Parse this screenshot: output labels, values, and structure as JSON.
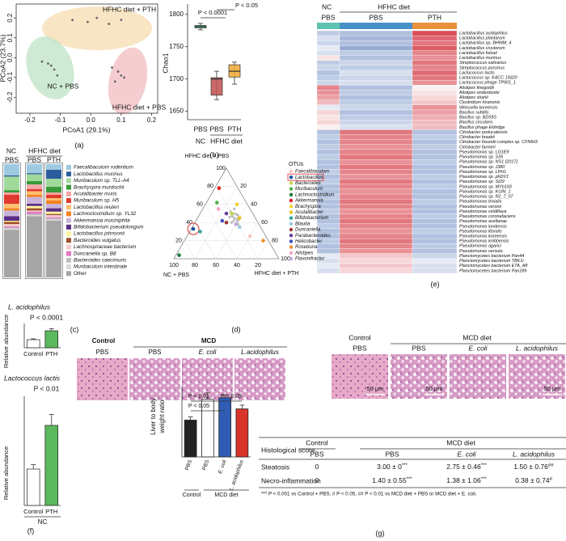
{
  "panel_labels": [
    "(a)",
    "(b)",
    "(c)",
    "(d)",
    "(e)",
    "(f)",
    "(g)"
  ],
  "pcoa": {
    "type": "scatter",
    "xlabel": "PCoA1 (29.1%)",
    "ylabel": "PCoA2 (23.7%)",
    "xlim": [
      -0.245,
      0.22
    ],
    "ylim": [
      -0.28,
      0.27
    ],
    "xticks": [
      -0.2,
      -0.1,
      {
        "value": 0,
        "label": "0.0"
      },
      0.1,
      0.2
    ],
    "yticks": [
      -0.2,
      -0.1,
      {
        "value": 0,
        "label": "0.0"
      },
      0.1,
      0.2
    ],
    "series": [
      {
        "name": "HFHC diet + PTH",
        "color": "#f5dcb0",
        "x": [
          -0.06,
          -0.01,
          0.02,
          0.06,
          0.1
        ],
        "values": [
          0.19,
          0.18,
          0.2,
          0.17,
          0.19
        ]
      },
      {
        "name": "NC + PBS",
        "color": "#bfe3c6",
        "x": [
          -0.16,
          -0.13,
          -0.12,
          -0.11,
          -0.14
        ],
        "values": [
          -0.02,
          -0.04,
          -0.06,
          -0.09,
          -0.03
        ]
      },
      {
        "name": "HFHC diet + PBS",
        "color": "#f2bcc0",
        "x": [
          0.07,
          0.09,
          0.1,
          0.11,
          0.08
        ],
        "values": [
          -0.05,
          -0.07,
          -0.09,
          -0.1,
          -0.12
        ]
      }
    ]
  },
  "chao1": {
    "type": "box",
    "ylabel": "Chao1",
    "ylim": [
      1637,
      1816
    ],
    "yticks": [
      1650,
      1700,
      1750,
      1800
    ],
    "categories": [
      "PBS",
      "PBS",
      "PTH"
    ],
    "groups": [
      "NC",
      "HFHC diet"
    ],
    "colors": [
      "#3cb371",
      "#c0504d",
      "#f0a830"
    ],
    "min": [
      1776,
      1668,
      1692
    ],
    "q1": [
      1779,
      1675,
      1703
    ],
    "median": [
      1781,
      1700,
      1712
    ],
    "q3": [
      1783,
      1702,
      1722
    ],
    "max": [
      1786,
      1712,
      1726
    ],
    "annotations": [
      "P < 0.0001",
      "P < 0.05"
    ]
  },
  "heatmap": {
    "column_groups": [
      "NC",
      "HFHC diet"
    ],
    "columns": [
      "PBS",
      "PBS",
      "PTH"
    ],
    "column_colors": [
      "#5fc3b2",
      "#4a90c8",
      "#e8913a"
    ],
    "rows": [
      "Lactobacillus acidophilus",
      "Lactobacillus plantarum",
      "Lactobacillus sp. BHWM_4",
      "Lactobacillus crustorum",
      "Lactobacillus futsaii",
      "Lactobacillus murinus",
      "Streptococcus salivarius",
      "Streptococcus porcinus",
      "Lactococcus lactis",
      "Lactococcus sp. KACC 19320",
      "Lactococcus phage TP901_1",
      "Alistipes finegoldii",
      "Alistipes onderdonkii",
      "Alistipes shahii",
      "Clostridium hiranonis",
      "Weissella koreensis",
      "Bacillus subtilis",
      "Bacillus sp. BD59S",
      "Bacillus circulans",
      "Bacillus phage Eldridge",
      "Citrobacter portucalensis",
      "Citrobacter braakii",
      "Citrobacter freundii complex sp. CFNIH3",
      "Citrobacter farmeri",
      "Pseudomonas sp. LG1E9",
      "Pseudomonas sp. S35",
      "Pseudomonas sp. NS1 (2017)",
      "Pseudomonas sp. J380",
      "Pseudomonas sp. LPH1",
      "Pseudomonas sp. phDV1",
      "Pseudomonas sp. St29",
      "Pseudomonas sp. MYb193",
      "Pseudomonas sp. KUIN_1",
      "Pseudomonas sp. R2_7_07",
      "Pseudomonas trivialis",
      "Pseudomonas veronii",
      "Pseudomonas viridiflava",
      "Pseudomonas coronafaciens",
      "Pseudomonas avellanae",
      "Pseudomonas lundensis",
      "Pseudomonas litoralis",
      "Pseudomonas koreensis",
      "Pseudomonas knibbensis",
      "Pseudomonas agarici",
      "Pseudomonas versuta",
      "Planctomycetes bacterium Pan44",
      "Planctomycetes bacterium TBK1r",
      "Planctomycetes bacterium ETA_A8",
      "Planctomycetes bacterium Pan189"
    ],
    "values": [
      [
        -0.5,
        -0.6,
        1.3
      ],
      [
        -0.3,
        -0.7,
        1.1
      ],
      [
        -0.4,
        -0.6,
        1.0
      ],
      [
        -0.2,
        -0.8,
        1.2
      ],
      [
        -0.3,
        -0.5,
        0.9
      ],
      [
        0.2,
        -0.6,
        0.8
      ],
      [
        -0.5,
        -0.4,
        1.0
      ],
      [
        -0.4,
        -0.5,
        0.9
      ],
      [
        -0.6,
        -0.3,
        1.1
      ],
      [
        -0.5,
        -0.4,
        1.0
      ],
      [
        -0.4,
        -0.3,
        0.8
      ],
      [
        0.9,
        -0.6,
        0.1
      ],
      [
        0.8,
        -0.5,
        0.2
      ],
      [
        0.7,
        -0.6,
        0.3
      ],
      [
        0.5,
        -0.5,
        0.4
      ],
      [
        -0.2,
        -0.4,
        0.8
      ],
      [
        0.3,
        -0.6,
        0.7
      ],
      [
        0.2,
        -0.5,
        0.6
      ],
      [
        0.3,
        -0.4,
        0.5
      ],
      [
        0.1,
        -0.3,
        0.5
      ],
      [
        -0.6,
        1.0,
        -0.6
      ],
      [
        -0.5,
        0.9,
        -0.5
      ],
      [
        -0.6,
        0.9,
        -0.6
      ],
      [
        -0.5,
        0.8,
        -0.5
      ],
      [
        -0.6,
        0.9,
        -0.6
      ],
      [
        -0.5,
        1.0,
        -0.6
      ],
      [
        -0.6,
        0.8,
        -0.5
      ],
      [
        -0.6,
        1.0,
        -0.6
      ],
      [
        -0.5,
        0.9,
        -0.6
      ],
      [
        -0.6,
        0.8,
        -0.5
      ],
      [
        -0.5,
        1.0,
        -0.6
      ],
      [
        -0.6,
        0.9,
        -0.5
      ],
      [
        -0.6,
        0.8,
        -0.6
      ],
      [
        -0.5,
        0.9,
        -0.6
      ],
      [
        -0.6,
        1.0,
        -0.5
      ],
      [
        -0.6,
        0.9,
        -0.6
      ],
      [
        -0.5,
        0.8,
        -0.6
      ],
      [
        -0.6,
        0.9,
        -0.5
      ],
      [
        -0.6,
        1.0,
        -0.6
      ],
      [
        -0.5,
        0.9,
        -0.6
      ],
      [
        -0.6,
        0.8,
        -0.5
      ],
      [
        -0.6,
        0.9,
        -0.6
      ],
      [
        -0.5,
        1.0,
        -0.6
      ],
      [
        -0.6,
        0.9,
        -0.5
      ],
      [
        -0.6,
        0.8,
        -0.6
      ],
      [
        -0.2,
        0.4,
        -0.4
      ],
      [
        -0.3,
        0.3,
        -0.2
      ],
      [
        -0.2,
        0.4,
        -0.3
      ],
      [
        -0.3,
        0.3,
        -0.3
      ]
    ]
  },
  "composition": {
    "group_labels": [
      "NC",
      "HFHC diet"
    ],
    "categories": [
      "PBS",
      "PBS",
      "PTH"
    ],
    "series": [
      {
        "name": "Faecalibaculum rodentium",
        "color": "#9ecae1",
        "values": [
          10,
          8,
          5
        ]
      },
      {
        "name": "Lactobacillus murinus",
        "color": "#2b5d9c",
        "values": [
          1,
          1,
          8
        ]
      },
      {
        "name": "Muribaculum sp. TLL-A4",
        "color": "#a1d99b",
        "values": [
          12,
          6,
          7
        ]
      },
      {
        "name": "Brachyspira murdochii",
        "color": "#3a9a3a",
        "values": [
          2,
          3,
          5
        ]
      },
      {
        "name": "Acutalibacter muris",
        "color": "#f4a6a6",
        "values": [
          2,
          4,
          2
        ]
      },
      {
        "name": "Muribaculum sp. H5",
        "color": "#e03a2f",
        "values": [
          8,
          2,
          3
        ]
      },
      {
        "name": "Lactobacillus reuteri",
        "color": "#fdbf6f",
        "values": [
          4,
          3,
          2
        ]
      },
      {
        "name": "Lachnoclostridium sp. YL32",
        "color": "#f58220",
        "values": [
          2,
          2,
          3
        ]
      },
      {
        "name": "Akkermansia muciniphila",
        "color": "#c9b3d9",
        "values": [
          5,
          6,
          4
        ]
      },
      {
        "name": "Bifidobacterium pseudolongum",
        "color": "#5b2c83",
        "values": [
          4,
          2,
          3
        ]
      },
      {
        "name": "Lactobacillus johnsonii",
        "color": "#fff59d",
        "values": [
          1,
          2,
          2
        ]
      },
      {
        "name": "Bacteroides vulgatus",
        "color": "#a0522d",
        "values": [
          2,
          2,
          1
        ]
      },
      {
        "name": "Lachnospiraceae bacterium",
        "color": "#f4cccc",
        "values": [
          2,
          1,
          2
        ]
      },
      {
        "name": "Duncaniella sp. B8",
        "color": "#e377c2",
        "values": [
          1,
          2,
          1
        ]
      },
      {
        "name": "Bacteroides caecimuris",
        "color": "#bdbdbd",
        "values": [
          1,
          1,
          1
        ]
      },
      {
        "name": "Muribaculum intestinale",
        "color": "#d9d9d9",
        "values": [
          1,
          1,
          1
        ]
      },
      {
        "name": "Other",
        "color": "#a6a6a6",
        "values": [
          42,
          54,
          50
        ]
      }
    ]
  },
  "ternary": {
    "title": "OTUs",
    "vertices": [
      "HFHC diet + PBS",
      "NC + PBS",
      "HFHC diet + PTH"
    ],
    "ticks": [
      20,
      40,
      60,
      80,
      100
    ],
    "genera": [
      {
        "name": "Faecalibaculum",
        "color": "#f7c6c7",
        "points": [
          [
            25,
            15,
            60
          ]
        ]
      },
      {
        "name": "Lactobacillus",
        "color": "#1f4e9c",
        "points": [
          [
            33,
            65,
            2
          ]
        ]
      },
      {
        "name": "Bacteroides",
        "color": "#c5d94a",
        "points": [
          [
            50,
            20,
            30
          ]
        ]
      },
      {
        "name": "Muribaculum",
        "color": "#4daf4a",
        "points": [
          [
            62,
            28,
            10
          ]
        ]
      },
      {
        "name": "Lachnoclostridium",
        "color": "#1b7a3c",
        "points": [
          [
            4,
            93,
            3
          ]
        ]
      },
      {
        "name": "Akkermansia",
        "color": "#e41a1c",
        "points": [
          [
            78,
            18,
            4
          ]
        ]
      },
      {
        "name": "Brachyspira",
        "color": "#f2d230",
        "points": [
          [
            60,
            10,
            30
          ]
        ]
      },
      {
        "name": "Acutalibacter",
        "color": "#e6c229",
        "points": [
          [
            45,
            15,
            40
          ]
        ]
      },
      {
        "name": "Bifidobacterium",
        "color": "#2ba6a0",
        "points": [
          [
            30,
            60,
            10
          ]
        ]
      },
      {
        "name": "Blautia",
        "color": "#9ecae1",
        "points": [
          [
            35,
            20,
            45
          ]
        ]
      },
      {
        "name": "Duncaniella",
        "color": "#a0362e",
        "points": [
          [
            40,
            30,
            30
          ]
        ]
      },
      {
        "name": "Parabacteroides",
        "color": "#6a3d9a",
        "points": [
          [
            50,
            25,
            25
          ]
        ]
      },
      {
        "name": "Helicobacter",
        "color": "#3f51b5",
        "points": [
          [
            42,
            33,
            25
          ]
        ]
      },
      {
        "name": "Roseburia",
        "color": "#f28e2b",
        "points": [
          [
            20,
            5,
            75
          ]
        ]
      },
      {
        "name": "Alistipes",
        "color": "#f4a6c8",
        "points": [
          [
            55,
            30,
            15
          ]
        ]
      },
      {
        "name": "Flavonifractor",
        "color": "#c3a8e0",
        "points": [
          [
            38,
            22,
            40
          ]
        ]
      }
    ],
    "other_points": {
      "color": "#bbbbbb",
      "points": [
        [
          45,
          20,
          35
        ],
        [
          50,
          18,
          32
        ],
        [
          42,
          22,
          36
        ],
        [
          48,
          15,
          37
        ],
        [
          40,
          25,
          35
        ],
        [
          52,
          20,
          28
        ],
        [
          46,
          24,
          30
        ],
        [
          44,
          18,
          38
        ],
        [
          38,
          20,
          42
        ],
        [
          55,
          15,
          30
        ],
        [
          47,
          21,
          32
        ],
        [
          43,
          17,
          40
        ],
        [
          50,
          25,
          25
        ],
        [
          41,
          19,
          40
        ],
        [
          49,
          16,
          35
        ]
      ]
    }
  },
  "abundance_acidophilus": {
    "title": "L. acidophilus",
    "annotation": "P < 0.0001",
    "ylabel": "Relative abundance",
    "categories": [
      "Control",
      "PTH"
    ],
    "colors": [
      "#ffffff",
      "#5cb85c"
    ],
    "ylim": [
      0,
      3
    ],
    "values": [
      1,
      2.1
    ],
    "errors": [
      0.1,
      0.25
    ]
  },
  "abundance_lactis": {
    "title": "Lactococcus lactis",
    "annotation": "P < 0.01",
    "ylabel": "Relative abundance",
    "categories": [
      "Control",
      "PTH"
    ],
    "group": "NC",
    "colors": [
      "#ffffff",
      "#5cb85c"
    ],
    "ylim": [
      0,
      3
    ],
    "values": [
      1,
      2.2
    ],
    "errors": [
      0.12,
      0.3
    ]
  },
  "histology_left": {
    "header": [
      "Control",
      "MCD"
    ],
    "labels": [
      "PBS",
      "PBS",
      "E. coli",
      "L.acidophilus"
    ]
  },
  "histology_right": {
    "header": [
      "Control",
      "MCD diet"
    ],
    "labels": [
      "PBS",
      "PBS",
      "E. coli",
      "L. acidophilus"
    ],
    "scale_bar": "50 μm"
  },
  "liver_ratio": {
    "ylabel": [
      "Liver to body",
      "weight ratio"
    ],
    "categories": [
      "PBS",
      "PBS",
      "E. coli",
      "L. acidophilus"
    ],
    "groups": [
      "Control",
      "MCD diet"
    ],
    "colors": [
      "#222222",
      "#ffffff",
      "#2f5db5",
      "#d9342b"
    ],
    "ylim": [
      3,
      5.2
    ],
    "values": [
      4.15,
      4.8,
      4.85,
      4.5
    ],
    "errors": [
      0.1,
      0.2,
      0.1,
      0.12
    ],
    "annotations": [
      "P < 0.01",
      "P < 0.05",
      "P < 0.05"
    ]
  },
  "table": {
    "corner": "Histological score",
    "header": [
      "Control",
      "MCD diet"
    ],
    "subheader": [
      "PBS",
      "PBS",
      "E. coli",
      "L. acidophilus"
    ],
    "rows": [
      {
        "label": "Steatosis",
        "cells": [
          {
            "text": "0",
            "sup": ""
          },
          {
            "text": "3.00 ± 0",
            "sup": "***"
          },
          {
            "text": "2.75 ± 0.46",
            "sup": "***"
          },
          {
            "text": "1.50 ± 0.76",
            "sup": "##"
          }
        ]
      },
      {
        "label": "Necro-inflammation",
        "cells": [
          {
            "text": "0",
            "sup": ""
          },
          {
            "text": "1.40 ± 0.55",
            "sup": "***"
          },
          {
            "text": "1.38 ± 1.06",
            "sup": "***"
          },
          {
            "text": "0.38 ± 0.74",
            "sup": "#"
          }
        ]
      }
    ],
    "footnote": "*** P < 0.001 vs Control + PBS; # P < 0.05, ## P < 0.01 vs MCD diet + PBS or MCD diet + E. coli."
  }
}
